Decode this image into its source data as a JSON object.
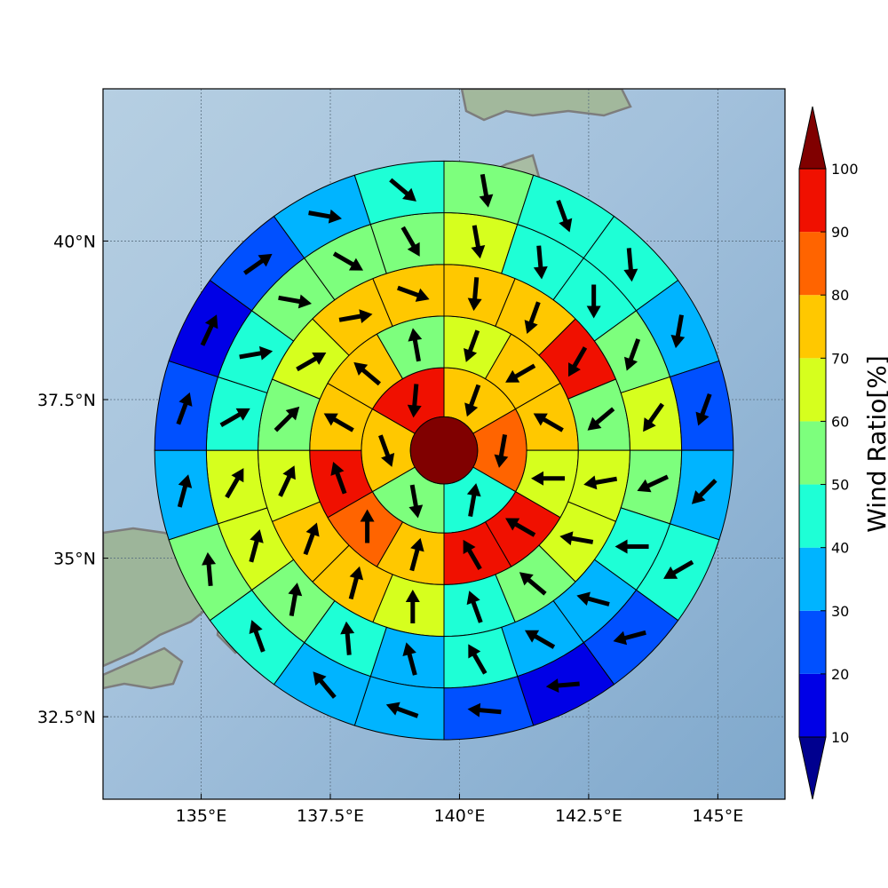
{
  "map": {
    "lon_range": [
      133.1,
      146.3
    ],
    "lat_range": [
      31.2,
      42.4
    ],
    "center": {
      "lon": 139.7,
      "lat": 36.7
    },
    "ring_radii_deg": [
      0.65,
      1.6,
      2.6,
      3.6,
      4.6,
      5.6
    ],
    "gridlines": true
  },
  "axes": {
    "x_ticks": [
      {
        "value": 135.0,
        "label": "135°E"
      },
      {
        "value": 137.5,
        "label": "137.5°E"
      },
      {
        "value": 140.0,
        "label": "140°E"
      },
      {
        "value": 142.5,
        "label": "142.5°E"
      },
      {
        "value": 145.0,
        "label": "145°E"
      }
    ],
    "y_ticks": [
      {
        "value": 40.0,
        "label": "40°N"
      },
      {
        "value": 37.5,
        "label": "37.5°N"
      },
      {
        "value": 35.0,
        "label": "35°N"
      },
      {
        "value": 32.5,
        "label": "32.5°N"
      }
    ]
  },
  "colorbar": {
    "title": "Wind Ratio[%]",
    "levels": [
      10,
      20,
      30,
      40,
      50,
      60,
      70,
      80,
      90,
      100
    ],
    "tick_labels": [
      "10",
      "20",
      "30",
      "40",
      "50",
      "60",
      "70",
      "80",
      "90",
      "100"
    ],
    "colors": [
      "#00008f",
      "#0000e6",
      "#0050ff",
      "#00b4ff",
      "#1effd6",
      "#7dff7d",
      "#d6ff1e",
      "#ffc800",
      "#ff6400",
      "#f01000",
      "#800000"
    ],
    "extend": "both"
  },
  "rings": [
    {
      "ring": 1,
      "values": [
        70,
        80,
        40,
        50,
        70,
        90
      ]
    },
    {
      "ring": 2,
      "values": [
        60,
        70,
        70,
        60,
        90,
        90,
        70,
        80,
        90,
        70,
        70,
        50
      ]
    },
    {
      "ring": 3,
      "values": [
        70,
        70,
        90,
        50,
        60,
        60,
        50,
        40,
        60,
        70,
        70,
        60,
        50,
        60,
        70,
        70
      ]
    },
    {
      "ring": 4,
      "values": [
        60,
        40,
        40,
        50,
        60,
        50,
        40,
        30,
        30,
        40,
        30,
        40,
        50,
        60,
        60,
        40,
        40,
        50,
        50,
        50
      ]
    },
    {
      "ring": 5,
      "values": [
        50,
        40,
        40,
        30,
        20,
        30,
        40,
        20,
        10,
        20,
        30,
        30,
        40,
        50,
        30,
        20,
        10,
        20,
        30,
        40
      ]
    }
  ],
  "center_value": 100,
  "arrows": [
    {
      "ring": 0,
      "angles_deg": []
    },
    {
      "ring": 1,
      "angles_deg": [
        200,
        190,
        10,
        170,
        160,
        185
      ]
    },
    {
      "ring": 2,
      "angles_deg": [
        200,
        240,
        300,
        270,
        300,
        330,
        15,
        0,
        340,
        300,
        310,
        350
      ]
    },
    {
      "ring": 3,
      "angles_deg": [
        185,
        200,
        210,
        230,
        260,
        280,
        310,
        340,
        0,
        15,
        20,
        25,
        45,
        60,
        80,
        110
      ]
    },
    {
      "ring": 4,
      "angles_deg": [
        170,
        175,
        180,
        200,
        215,
        245,
        270,
        285,
        300,
        330,
        345,
        355,
        10,
        15,
        30,
        60,
        80,
        100,
        120,
        150
      ]
    },
    {
      "ring": 5,
      "angles_deg": [
        170,
        160,
        175,
        190,
        200,
        225,
        240,
        255,
        265,
        275,
        290,
        320,
        340,
        355,
        15,
        20,
        25,
        55,
        100,
        130
      ]
    }
  ]
}
